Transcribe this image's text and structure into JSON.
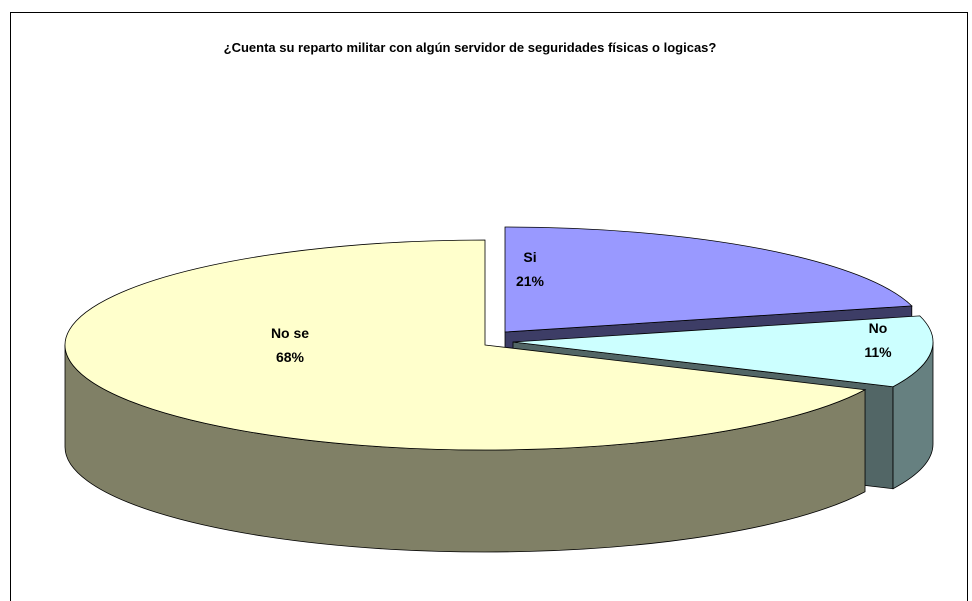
{
  "chart_data": {
    "type": "pie3d",
    "title": "¿Cuenta su reparto militar con algún servidor de seguridades físicas o logicas?",
    "categories": [
      "Si",
      "No",
      "No se"
    ],
    "values": [
      21,
      11,
      68
    ],
    "value_labels": [
      "21%",
      "11%",
      "68%"
    ],
    "colors": [
      "#9999ff",
      "#ccffff",
      "#ffffcc"
    ]
  }
}
